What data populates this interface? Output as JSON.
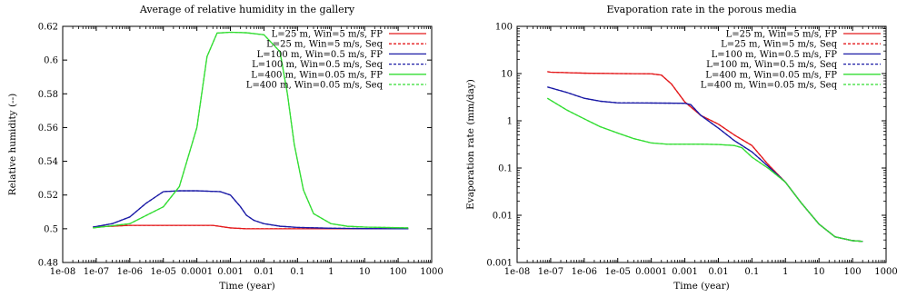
{
  "chart_data": [
    {
      "type": "line",
      "title": "Average of relative humidity in the gallery",
      "xlabel": "Time (year)",
      "ylabel": "Relative humidity (--)",
      "xscale": "log",
      "yscale": "linear",
      "xlim": [
        1e-08,
        1000
      ],
      "ylim": [
        0.48,
        0.62
      ],
      "x_ticks": [
        "1e-08",
        "1e-07",
        "1e-06",
        "1e-05",
        "0.0001",
        "0.001",
        "0.01",
        "0.1",
        "1",
        "10",
        "100",
        "1000"
      ],
      "y_ticks": [
        "0.48",
        "0.5",
        "0.52",
        "0.54",
        "0.56",
        "0.58",
        "0.6",
        "0.62"
      ],
      "legend_position": "top-right",
      "grid": false,
      "series": [
        {
          "name": "L=25 m, Win=5 m/s, FP",
          "color": "#e41a1c",
          "dash": "solid",
          "x": [
            8e-08,
            1e-06,
            1e-05,
            0.0001,
            0.0003,
            0.001,
            0.003,
            0.01,
            0.1,
            1,
            10,
            200
          ],
          "y": [
            0.501,
            0.502,
            0.502,
            0.502,
            0.502,
            0.5005,
            0.5,
            0.5,
            0.5,
            0.5,
            0.5,
            0.5
          ]
        },
        {
          "name": "L=25 m, Win=5 m/s, Seq",
          "color": "#e41a1c",
          "dash": "dashed",
          "x": [
            8e-08,
            1e-06,
            1e-05,
            0.0001,
            0.0003,
            0.001,
            0.003,
            0.01,
            0.1,
            1,
            10,
            200
          ],
          "y": [
            0.501,
            0.502,
            0.502,
            0.502,
            0.502,
            0.5005,
            0.5,
            0.5,
            0.5,
            0.5,
            0.5,
            0.5
          ]
        },
        {
          "name": "L=100 m, Win=0.5 m/s, FP",
          "color": "#1a1aa6",
          "dash": "solid",
          "x": [
            8e-08,
            3e-07,
            1e-06,
            3e-06,
            1e-05,
            3e-05,
            0.0001,
            0.0005,
            0.001,
            0.002,
            0.003,
            0.005,
            0.01,
            0.03,
            0.1,
            1,
            10,
            200
          ],
          "y": [
            0.501,
            0.503,
            0.507,
            0.515,
            0.522,
            0.5225,
            0.5225,
            0.522,
            0.52,
            0.513,
            0.508,
            0.505,
            0.503,
            0.5015,
            0.5008,
            0.5003,
            0.5001,
            0.5
          ]
        },
        {
          "name": "L=100 m, Win=0.5 m/s, Seq",
          "color": "#1a1aa6",
          "dash": "dashed",
          "x": [
            8e-08,
            3e-07,
            1e-06,
            3e-06,
            1e-05,
            3e-05,
            0.0001,
            0.0005,
            0.001,
            0.002,
            0.003,
            0.005,
            0.01,
            0.03,
            0.1,
            1,
            10,
            200
          ],
          "y": [
            0.501,
            0.503,
            0.507,
            0.515,
            0.522,
            0.5225,
            0.5225,
            0.522,
            0.52,
            0.513,
            0.508,
            0.505,
            0.503,
            0.5015,
            0.5008,
            0.5003,
            0.5001,
            0.5
          ]
        },
        {
          "name": "L=400 m, Win=0.05 m/s, FP",
          "color": "#33dd33",
          "dash": "solid",
          "x": [
            8e-08,
            1e-06,
            1e-05,
            3e-05,
            0.0001,
            0.0002,
            0.0004,
            0.001,
            0.003,
            0.01,
            0.03,
            0.05,
            0.08,
            0.15,
            0.3,
            1,
            3,
            10,
            200
          ],
          "y": [
            0.5005,
            0.503,
            0.513,
            0.525,
            0.56,
            0.602,
            0.616,
            0.6165,
            0.6162,
            0.615,
            0.605,
            0.58,
            0.55,
            0.523,
            0.509,
            0.503,
            0.5015,
            0.501,
            0.5005
          ]
        },
        {
          "name": "L=400 m, Win=0.05 m/s, Seq",
          "color": "#33dd33",
          "dash": "dashed",
          "x": [
            8e-08,
            1e-06,
            1e-05,
            3e-05,
            0.0001,
            0.0002,
            0.0004,
            0.001,
            0.003,
            0.01,
            0.03,
            0.05,
            0.08,
            0.15,
            0.3,
            1,
            3,
            10,
            200
          ],
          "y": [
            0.5005,
            0.503,
            0.513,
            0.525,
            0.56,
            0.602,
            0.616,
            0.6165,
            0.6162,
            0.615,
            0.605,
            0.58,
            0.55,
            0.523,
            0.509,
            0.503,
            0.5015,
            0.501,
            0.5005
          ]
        }
      ]
    },
    {
      "type": "line",
      "title": "Evaporation rate in the porous media",
      "xlabel": "Time (year)",
      "ylabel": "Evaporation rate (mm/day)",
      "xscale": "log",
      "yscale": "log",
      "xlim": [
        1e-08,
        1000
      ],
      "ylim": [
        0.001,
        100
      ],
      "x_ticks": [
        "1e-08",
        "1e-07",
        "1e-06",
        "1e-05",
        "0.0001",
        "0.001",
        "0.01",
        "0.1",
        "1",
        "10",
        "100",
        "1000"
      ],
      "y_ticks": [
        "0.001",
        "0.01",
        "0.1",
        "1",
        "10",
        "100"
      ],
      "legend_position": "top-right",
      "grid": false,
      "series": [
        {
          "name": "L=25 m, Win=5 m/s, FP",
          "color": "#e41a1c",
          "dash": "solid",
          "x": [
            8e-08,
            1e-07,
            1e-06,
            1e-05,
            0.0001,
            0.0002,
            0.0004,
            0.001,
            0.003,
            0.01,
            0.03,
            0.1,
            0.3,
            1,
            3,
            10,
            30,
            100,
            200
          ],
          "y": [
            11,
            10.7,
            10.2,
            10,
            9.9,
            9.3,
            6,
            2.5,
            1.3,
            0.85,
            0.5,
            0.3,
            0.12,
            0.05,
            0.018,
            0.0065,
            0.0035,
            0.0029,
            0.0028
          ]
        },
        {
          "name": "L=25 m, Win=5 m/s, Seq",
          "color": "#e41a1c",
          "dash": "dashed",
          "x": [
            8e-08,
            1e-07,
            1e-06,
            1e-05,
            0.0001,
            0.0002,
            0.0004,
            0.001,
            0.003,
            0.01,
            0.03,
            0.1,
            0.3,
            1,
            3,
            10,
            30,
            100,
            200
          ],
          "y": [
            11,
            10.7,
            10.2,
            10,
            9.9,
            9.3,
            6,
            2.5,
            1.3,
            0.85,
            0.5,
            0.3,
            0.12,
            0.05,
            0.018,
            0.0065,
            0.0035,
            0.0029,
            0.0028
          ]
        },
        {
          "name": "L=100 m, Win=0.5 m/s, FP",
          "color": "#1a1aa6",
          "dash": "solid",
          "x": [
            8e-08,
            3e-07,
            1e-06,
            3e-06,
            1e-05,
            0.0001,
            0.001,
            0.0015,
            0.003,
            0.01,
            0.03,
            0.1,
            0.3,
            1,
            3,
            10,
            30,
            100,
            200
          ],
          "y": [
            5.2,
            4,
            3,
            2.6,
            2.4,
            2.38,
            2.35,
            2.2,
            1.3,
            0.7,
            0.38,
            0.22,
            0.11,
            0.05,
            0.018,
            0.0065,
            0.0035,
            0.0029,
            0.0028
          ]
        },
        {
          "name": "L=100 m, Win=0.5 m/s, Seq",
          "color": "#1a1aa6",
          "dash": "dashed",
          "x": [
            8e-08,
            3e-07,
            1e-06,
            3e-06,
            1e-05,
            0.0001,
            0.001,
            0.0015,
            0.003,
            0.01,
            0.03,
            0.1,
            0.3,
            1,
            3,
            10,
            30,
            100,
            200
          ],
          "y": [
            5.2,
            4,
            3,
            2.6,
            2.4,
            2.38,
            2.35,
            2.2,
            1.3,
            0.7,
            0.38,
            0.22,
            0.11,
            0.05,
            0.018,
            0.0065,
            0.0035,
            0.0029,
            0.0028
          ]
        },
        {
          "name": "L=400 m, Win=0.05 m/s, FP",
          "color": "#33dd33",
          "dash": "solid",
          "x": [
            8e-08,
            3e-07,
            1e-06,
            3e-06,
            1e-05,
            3e-05,
            0.0001,
            0.0003,
            0.001,
            0.003,
            0.01,
            0.03,
            0.05,
            0.1,
            0.3,
            1,
            3,
            10,
            30,
            100,
            200
          ],
          "y": [
            3,
            1.7,
            1.1,
            0.75,
            0.55,
            0.42,
            0.34,
            0.32,
            0.32,
            0.32,
            0.315,
            0.3,
            0.27,
            0.17,
            0.1,
            0.05,
            0.018,
            0.0065,
            0.0035,
            0.0029,
            0.0028
          ]
        },
        {
          "name": "L=400 m, Win=0.05 m/s, Seq",
          "color": "#33dd33",
          "dash": "dashed",
          "x": [
            8e-08,
            3e-07,
            1e-06,
            3e-06,
            1e-05,
            3e-05,
            0.0001,
            0.0003,
            0.001,
            0.003,
            0.01,
            0.03,
            0.05,
            0.1,
            0.3,
            1,
            3,
            10,
            30,
            100,
            200
          ],
          "y": [
            3,
            1.7,
            1.1,
            0.75,
            0.55,
            0.42,
            0.34,
            0.32,
            0.32,
            0.32,
            0.315,
            0.3,
            0.27,
            0.17,
            0.1,
            0.05,
            0.018,
            0.0065,
            0.0035,
            0.0029,
            0.0028
          ]
        }
      ]
    }
  ]
}
